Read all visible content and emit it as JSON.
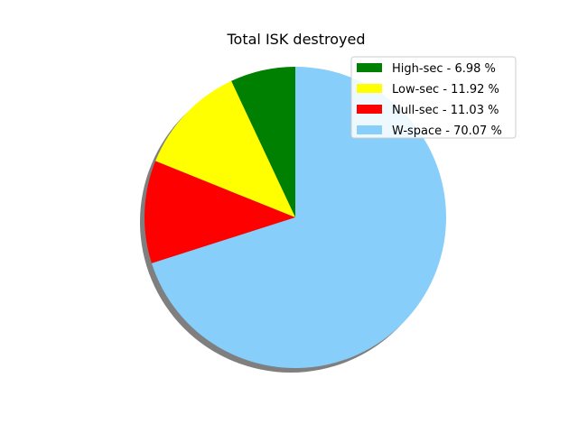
{
  "chart_data": {
    "type": "pie",
    "title": "Total ISK destroyed",
    "legend_position": "top-right",
    "shadow": true,
    "start_angle_deg": 90,
    "direction": "counterclockwise",
    "slices": [
      {
        "label": "High-sec - 6.98 %",
        "value": 6.98,
        "color": "#008000"
      },
      {
        "label": "Low-sec - 11.92 %",
        "value": 11.92,
        "color": "#ffff00"
      },
      {
        "label": "Null-sec - 11.03 %",
        "value": 11.03,
        "color": "#ff0000"
      },
      {
        "label": "W-space - 70.07 %",
        "value": 70.07,
        "color": "#87cefa"
      }
    ]
  }
}
